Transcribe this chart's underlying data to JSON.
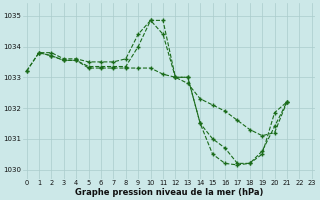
{
  "lines": [
    {
      "x": [
        0,
        1,
        2,
        3,
        4,
        5,
        6,
        7,
        8,
        9,
        10,
        11,
        12,
        13,
        14,
        15,
        16,
        17,
        18,
        19,
        20,
        21,
        22,
        23
      ],
      "y": [
        1033.2,
        1033.8,
        1033.8,
        1033.6,
        1033.6,
        1033.5,
        1033.5,
        1033.5,
        1033.6,
        1034.4,
        1034.85,
        1034.4,
        1033.0,
        1033.0,
        1031.5,
        1030.5,
        1030.2,
        1030.15,
        1030.2,
        1030.5,
        1031.85,
        1032.2,
        null,
        null
      ]
    },
    {
      "x": [
        1,
        2,
        3,
        4,
        5,
        6,
        7,
        8,
        9,
        10,
        11,
        12,
        13,
        14,
        15,
        16,
        17,
        18,
        19,
        20,
        21,
        22,
        23
      ],
      "y": [
        1033.8,
        1033.7,
        1033.55,
        1033.55,
        1033.35,
        1033.35,
        1033.35,
        1033.35,
        1034.0,
        1034.85,
        1034.85,
        1033.0,
        1033.0,
        1031.5,
        1031.0,
        1030.7,
        1030.2,
        1030.2,
        1030.6,
        1031.4,
        1032.2,
        null,
        null
      ]
    },
    {
      "x": [
        0,
        1,
        2,
        3,
        4,
        5,
        6,
        7,
        8,
        9,
        10,
        11,
        12,
        13,
        14,
        15,
        16,
        17,
        18,
        19,
        20,
        21,
        22,
        23
      ],
      "y": [
        1033.2,
        1033.8,
        1033.7,
        1033.55,
        1033.55,
        1033.3,
        1033.3,
        1033.3,
        1033.3,
        1033.3,
        1033.3,
        1033.1,
        1033.0,
        1032.8,
        1032.3,
        1032.1,
        1031.9,
        1031.6,
        1031.3,
        1031.1,
        1031.2,
        1032.2,
        null,
        null
      ]
    }
  ],
  "bg_color": "#cce8e8",
  "line_color": "#1a6b1a",
  "grid_color": "#aacccc",
  "xlabel": "Graphe pression niveau de la mer (hPa)",
  "xticks": [
    0,
    1,
    2,
    3,
    4,
    5,
    6,
    7,
    8,
    9,
    10,
    11,
    12,
    13,
    14,
    15,
    16,
    17,
    18,
    19,
    20,
    21,
    22,
    23
  ],
  "xtick_labels": [
    "0",
    "1",
    "2",
    "3",
    "4",
    "5",
    "6",
    "7",
    "8",
    "9",
    "10",
    "11",
    "12",
    "13",
    "14",
    "15",
    "16",
    "17",
    "18",
    "19",
    "20",
    "21",
    "22",
    "23"
  ],
  "yticks": [
    1030,
    1031,
    1032,
    1033,
    1034,
    1035
  ],
  "ylim": [
    1029.7,
    1035.4
  ],
  "xlim": [
    -0.3,
    23.3
  ]
}
